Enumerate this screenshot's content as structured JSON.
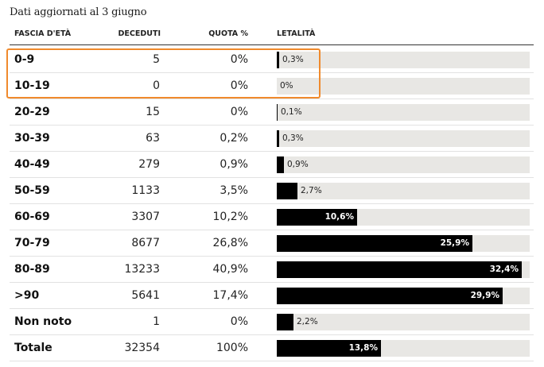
{
  "subtitle": "Dati aggiornati al 3 giugno",
  "headers": {
    "age": "FASCIA D'ETÀ",
    "deceased": "DECEDUTI",
    "share": "QUOTA %",
    "lethality": "LETALITÀ"
  },
  "colors": {
    "bar": "#000000",
    "track": "#e8e7e4",
    "highlight": "#f08a2c"
  },
  "chart_data": {
    "type": "table",
    "lethality_axis_max": 33.5,
    "rows": [
      {
        "age": "0-9",
        "deceased": "5",
        "share": "0%",
        "lethality": 0.3,
        "lethality_label": "0,3%",
        "highlighted": true
      },
      {
        "age": "10-19",
        "deceased": "0",
        "share": "0%",
        "lethality": 0,
        "lethality_label": "0%",
        "highlighted": true
      },
      {
        "age": "20-29",
        "deceased": "15",
        "share": "0%",
        "lethality": 0.1,
        "lethality_label": "0,1%"
      },
      {
        "age": "30-39",
        "deceased": "63",
        "share": "0,2%",
        "lethality": 0.3,
        "lethality_label": "0,3%"
      },
      {
        "age": "40-49",
        "deceased": "279",
        "share": "0,9%",
        "lethality": 0.9,
        "lethality_label": "0,9%"
      },
      {
        "age": "50-59",
        "deceased": "1133",
        "share": "3,5%",
        "lethality": 2.7,
        "lethality_label": "2,7%"
      },
      {
        "age": "60-69",
        "deceased": "3307",
        "share": "10,2%",
        "lethality": 10.6,
        "lethality_label": "10,6%"
      },
      {
        "age": "70-79",
        "deceased": "8677",
        "share": "26,8%",
        "lethality": 25.9,
        "lethality_label": "25,9%"
      },
      {
        "age": "80-89",
        "deceased": "13233",
        "share": "40,9%",
        "lethality": 32.4,
        "lethality_label": "32,4%"
      },
      {
        "age": ">90",
        "deceased": "5641",
        "share": "17,4%",
        "lethality": 29.9,
        "lethality_label": "29,9%"
      },
      {
        "age": "Non noto",
        "deceased": "1",
        "share": "0%",
        "lethality": 2.2,
        "lethality_label": "2,2%"
      },
      {
        "age": "Totale",
        "deceased": "32354",
        "share": "100%",
        "lethality": 13.8,
        "lethality_label": "13,8%"
      }
    ]
  }
}
